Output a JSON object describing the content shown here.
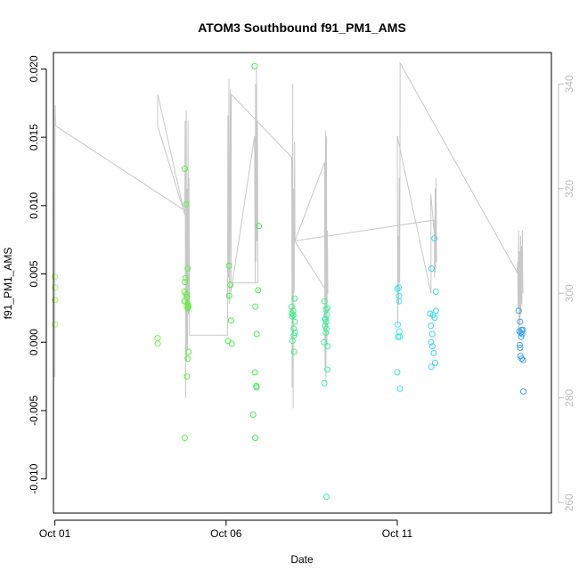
{
  "chart_data": {
    "type": "scatter",
    "title": "ATOM3 Southbound f91_PM1_AMS",
    "xlabel": "Date",
    "ylabel": "f91_PM1_AMS",
    "x_axis_type": "date",
    "xlim": [
      "2016-09-30T23:00",
      "2016-10-15T12:00"
    ],
    "ylim": [
      -0.0125,
      0.0212
    ],
    "y_ticks": [
      "-0.010",
      "-0.005",
      "0.000",
      "0.005",
      "0.010",
      "0.015",
      "0.020"
    ],
    "y_tick_values": [
      -0.01,
      -0.005,
      0.0,
      0.005,
      0.01,
      0.015,
      0.02
    ],
    "x_ticks": [
      "Oct 01",
      "Oct 06",
      "Oct 11"
    ],
    "x_tick_values": [
      "2016-10-01",
      "2016-10-06",
      "2016-10-11"
    ],
    "right_axis": {
      "ylim": [
        258,
        346
      ],
      "ticks": [
        "260",
        "280",
        "300",
        "320",
        "340"
      ],
      "tick_values": [
        260,
        280,
        300,
        320,
        340
      ],
      "color": "#bdbdbd"
    },
    "grid": false,
    "series": [
      {
        "kind": "points",
        "marker": "open-circle",
        "points": [
          {
            "x": "2016-10-01T00:00",
            "y": 0.0048,
            "c": "#b4f25a"
          },
          {
            "x": "2016-10-01T00:10",
            "y": 0.004,
            "c": "#b4f25a"
          },
          {
            "x": "2016-10-01T00:05",
            "y": 0.0031,
            "c": "#b4f25a"
          },
          {
            "x": "2016-10-01T00:12",
            "y": 0.0031,
            "c": "#b4f25a"
          },
          {
            "x": "2016-10-01T00:08",
            "y": 0.0013,
            "c": "#b4f25a"
          },
          {
            "x": "2016-10-04T00:00",
            "y": 0.0003,
            "c": "#7df23a"
          },
          {
            "x": "2016-10-04T00:05",
            "y": -0.0001,
            "c": "#7df23a"
          },
          {
            "x": "2016-10-04T19:00",
            "y": 0.0127,
            "c": "#5af23a"
          },
          {
            "x": "2016-10-04T20:00",
            "y": 0.0101,
            "c": "#5af23a"
          },
          {
            "x": "2016-10-04T21:00",
            "y": 0.0054,
            "c": "#5af23a"
          },
          {
            "x": "2016-10-04T19:30",
            "y": 0.0047,
            "c": "#5af23a"
          },
          {
            "x": "2016-10-04T19:10",
            "y": 0.0044,
            "c": "#5af23a"
          },
          {
            "x": "2016-10-04T18:45",
            "y": 0.0037,
            "c": "#5af23a"
          },
          {
            "x": "2016-10-04T20:10",
            "y": 0.0035,
            "c": "#5af23a"
          },
          {
            "x": "2016-10-04T20:30",
            "y": 0.0033,
            "c": "#5af23a"
          },
          {
            "x": "2016-10-04T18:50",
            "y": 0.003,
            "c": "#5af23a"
          },
          {
            "x": "2016-10-04T19:05",
            "y": 0.003,
            "c": "#5af23a"
          },
          {
            "x": "2016-10-04T21:05",
            "y": 0.0028,
            "c": "#5af23a"
          },
          {
            "x": "2016-10-04T21:10",
            "y": 0.0027,
            "c": "#5af23a"
          },
          {
            "x": "2016-10-04T21:20",
            "y": 0.0026,
            "c": "#5af23a"
          },
          {
            "x": "2016-10-04T21:30",
            "y": 0.0026,
            "c": "#5af23a"
          },
          {
            "x": "2016-10-04T21:00",
            "y": 0.0025,
            "c": "#5af23a"
          },
          {
            "x": "2016-10-04T21:40",
            "y": -0.0007,
            "c": "#5af23a"
          },
          {
            "x": "2016-10-04T21:00",
            "y": -0.0012,
            "c": "#5af23a"
          },
          {
            "x": "2016-10-04T20:40",
            "y": -0.0025,
            "c": "#5af23a"
          },
          {
            "x": "2016-10-04T19:00",
            "y": -0.007,
            "c": "#5af23a"
          },
          {
            "x": "2016-10-06T02:00",
            "y": 0.0056,
            "c": "#45ef45"
          },
          {
            "x": "2016-10-06T03:00",
            "y": 0.0042,
            "c": "#45ef45"
          },
          {
            "x": "2016-10-06T02:10",
            "y": 0.0034,
            "c": "#45ef45"
          },
          {
            "x": "2016-10-06T03:30",
            "y": 0.0016,
            "c": "#45ef45"
          },
          {
            "x": "2016-10-06T01:20",
            "y": 0.0001,
            "c": "#45ef45"
          },
          {
            "x": "2016-10-06T04:00",
            "y": -0.0001,
            "c": "#45ef45"
          },
          {
            "x": "2016-10-06T20:00",
            "y": 0.0202,
            "c": "#40ef55"
          },
          {
            "x": "2016-10-06T23:00",
            "y": 0.0085,
            "c": "#40ef55"
          },
          {
            "x": "2016-10-06T22:30",
            "y": 0.0038,
            "c": "#40ef55"
          },
          {
            "x": "2016-10-06T20:30",
            "y": 0.0026,
            "c": "#40ef55"
          },
          {
            "x": "2016-10-06T21:30",
            "y": 0.0006,
            "c": "#40ef55"
          },
          {
            "x": "2016-10-06T20:10",
            "y": -0.0022,
            "c": "#40ef55"
          },
          {
            "x": "2016-10-06T21:10",
            "y": -0.0032,
            "c": "#40ef55"
          },
          {
            "x": "2016-10-06T21:20",
            "y": -0.0033,
            "c": "#40ef55"
          },
          {
            "x": "2016-10-06T19:00",
            "y": -0.0053,
            "c": "#40ef55"
          },
          {
            "x": "2016-10-06T20:30",
            "y": -0.007,
            "c": "#40ef55"
          },
          {
            "x": "2016-10-08T00:00",
            "y": 0.0032,
            "c": "#3af089"
          },
          {
            "x": "2016-10-07T22:00",
            "y": 0.0026,
            "c": "#3af089"
          },
          {
            "x": "2016-10-07T23:00",
            "y": 0.0023,
            "c": "#3af089"
          },
          {
            "x": "2016-10-07T22:10",
            "y": 0.0021,
            "c": "#3af089"
          },
          {
            "x": "2016-10-07T23:10",
            "y": 0.002,
            "c": "#3af089"
          },
          {
            "x": "2016-10-07T22:20",
            "y": 0.0019,
            "c": "#3af089"
          },
          {
            "x": "2016-10-08T00:10",
            "y": 0.0015,
            "c": "#3af089"
          },
          {
            "x": "2016-10-07T23:20",
            "y": 0.001,
            "c": "#3af089"
          },
          {
            "x": "2016-10-08T00:20",
            "y": 0.0007,
            "c": "#3af089"
          },
          {
            "x": "2016-10-07T23:30",
            "y": 0.0005,
            "c": "#3af089"
          },
          {
            "x": "2016-10-07T22:30",
            "y": 0.0001,
            "c": "#3af089"
          },
          {
            "x": "2016-10-07T23:40",
            "y": -0.0007,
            "c": "#3af089"
          },
          {
            "x": "2016-10-08T21:00",
            "y": 0.003,
            "c": "#3aefa0"
          },
          {
            "x": "2016-10-08T23:00",
            "y": 0.0025,
            "c": "#3aefa0"
          },
          {
            "x": "2016-10-08T22:00",
            "y": 0.0024,
            "c": "#3aefa0"
          },
          {
            "x": "2016-10-08T22:30",
            "y": 0.002,
            "c": "#3aefa0"
          },
          {
            "x": "2016-10-08T21:20",
            "y": 0.0017,
            "c": "#3aefa0"
          },
          {
            "x": "2016-10-08T21:40",
            "y": 0.0017,
            "c": "#3aefa0"
          },
          {
            "x": "2016-10-08T22:10",
            "y": 0.0015,
            "c": "#3aefa0"
          },
          {
            "x": "2016-10-08T21:30",
            "y": 0.0012,
            "c": "#3aefa0"
          },
          {
            "x": "2016-10-08T22:20",
            "y": 0.001,
            "c": "#3aefa0"
          },
          {
            "x": "2016-10-08T21:50",
            "y": 0.0007,
            "c": "#3aefa0"
          },
          {
            "x": "2016-10-08T20:40",
            "y": 0.0,
            "c": "#3aefa0"
          },
          {
            "x": "2016-10-08T23:10",
            "y": -0.0003,
            "c": "#3aefa0"
          },
          {
            "x": "2016-10-08T23:00",
            "y": -0.002,
            "c": "#3aefa0"
          },
          {
            "x": "2016-10-08T20:50",
            "y": -0.003,
            "c": "#3aefa0"
          },
          {
            "x": "2016-10-08T22:20",
            "y": -0.0113,
            "c": "#3aefa0"
          },
          {
            "x": "2016-10-11T01:00",
            "y": 0.004,
            "c": "#3ae5e5"
          },
          {
            "x": "2016-10-11T00:00",
            "y": 0.0039,
            "c": "#3ae5e5"
          },
          {
            "x": "2016-10-11T01:10",
            "y": 0.0034,
            "c": "#3ae5e5"
          },
          {
            "x": "2016-10-11T01:20",
            "y": 0.003,
            "c": "#3ae5e5"
          },
          {
            "x": "2016-10-11T00:20",
            "y": 0.0013,
            "c": "#3ae5e5"
          },
          {
            "x": "2016-10-11T01:30",
            "y": 0.0008,
            "c": "#3ae5e5"
          },
          {
            "x": "2016-10-11T00:30",
            "y": 0.0004,
            "c": "#3ae5e5"
          },
          {
            "x": "2016-10-11T01:40",
            "y": 0.0004,
            "c": "#3ae5e5"
          },
          {
            "x": "2016-10-11T00:00",
            "y": -0.0022,
            "c": "#3ae5e5"
          },
          {
            "x": "2016-10-11T01:50",
            "y": -0.0034,
            "c": "#3ae5e5"
          },
          {
            "x": "2016-10-12T02:00",
            "y": 0.0076,
            "c": "#3ad5f0"
          },
          {
            "x": "2016-10-12T00:00",
            "y": 0.0054,
            "c": "#3ad5f0"
          },
          {
            "x": "2016-10-12T03:00",
            "y": 0.0037,
            "c": "#3ad5f0"
          },
          {
            "x": "2016-10-12T03:10",
            "y": 0.0023,
            "c": "#3ad5f0"
          },
          {
            "x": "2016-10-11T23:00",
            "y": 0.0021,
            "c": "#3ad5f0"
          },
          {
            "x": "2016-10-12T01:00",
            "y": 0.002,
            "c": "#3ad5f0"
          },
          {
            "x": "2016-10-12T02:10",
            "y": 0.0018,
            "c": "#3ad5f0"
          },
          {
            "x": "2016-10-11T23:30",
            "y": 0.0012,
            "c": "#3ad5f0"
          },
          {
            "x": "2016-10-12T00:30",
            "y": 0.0006,
            "c": "#3ad5f0"
          },
          {
            "x": "2016-10-11T23:40",
            "y": 0.0,
            "c": "#3ad5f0"
          },
          {
            "x": "2016-10-12T00:40",
            "y": -0.0003,
            "c": "#3ad5f0"
          },
          {
            "x": "2016-10-12T01:30",
            "y": -0.0008,
            "c": "#3ad5f0"
          },
          {
            "x": "2016-10-12T02:30",
            "y": -0.0015,
            "c": "#3ad5f0"
          },
          {
            "x": "2016-10-11T23:50",
            "y": -0.0018,
            "c": "#3ad5f0"
          },
          {
            "x": "2016-10-14T13:00",
            "y": 0.0023,
            "c": "#3aa3f0"
          },
          {
            "x": "2016-10-14T14:00",
            "y": 0.0015,
            "c": "#3aa3f0"
          },
          {
            "x": "2016-10-14T15:00",
            "y": 0.0009,
            "c": "#3aa3f0"
          },
          {
            "x": "2016-10-14T16:00",
            "y": 0.0009,
            "c": "#3aa3f0"
          },
          {
            "x": "2016-10-14T13:30",
            "y": 0.0008,
            "c": "#3aa3f0"
          },
          {
            "x": "2016-10-14T14:30",
            "y": 0.0007,
            "c": "#3aa3f0"
          },
          {
            "x": "2016-10-14T15:30",
            "y": 0.0006,
            "c": "#3aa3f0"
          },
          {
            "x": "2016-10-14T14:50",
            "y": 0.0004,
            "c": "#3aa3f0"
          },
          {
            "x": "2016-10-14T13:50",
            "y": -0.0002,
            "c": "#3aa3f0"
          },
          {
            "x": "2016-10-14T14:10",
            "y": -0.0004,
            "c": "#3aa3f0"
          },
          {
            "x": "2016-10-14T14:20",
            "y": -0.001,
            "c": "#3aa3f0"
          },
          {
            "x": "2016-10-14T15:10",
            "y": -0.0012,
            "c": "#3aa3f0"
          },
          {
            "x": "2016-10-14T16:10",
            "y": -0.0013,
            "c": "#3aa3f0"
          },
          {
            "x": "2016-10-14T16:20",
            "y": -0.0036,
            "c": "#3aa3f0"
          }
        ]
      },
      {
        "kind": "line",
        "axis": "right",
        "color": "#c8c8c8",
        "points": [
          [
            "2016-10-01T00:00",
            284
          ],
          [
            "2016-10-01T00:10",
            333
          ],
          [
            "2016-10-01T00:20",
            336
          ],
          [
            "2016-10-01T00:30",
            332
          ],
          [
            "2016-10-04T18:00",
            316
          ],
          [
            "2016-10-04T00:00",
            332
          ],
          [
            "2016-10-04T00:05",
            338
          ],
          [
            "2016-10-04T19:00",
            315
          ],
          [
            "2016-10-04T19:20",
            333
          ],
          [
            "2016-10-04T19:40",
            280
          ],
          [
            "2016-10-04T20:00",
            335
          ],
          [
            "2016-10-04T20:20",
            287
          ],
          [
            "2016-10-04T20:40",
            320
          ],
          [
            "2016-10-04T21:00",
            289
          ],
          [
            "2016-10-04T21:20",
            333
          ],
          [
            "2016-10-04T21:40",
            296
          ],
          [
            "2016-10-04T22:00",
            322
          ],
          [
            "2016-10-04T22:20",
            292
          ],
          [
            "2016-10-06T01:00",
            292
          ],
          [
            "2016-10-06T01:20",
            334
          ],
          [
            "2016-10-06T01:40",
            303
          ],
          [
            "2016-10-06T02:00",
            341
          ],
          [
            "2016-10-06T02:20",
            298
          ],
          [
            "2016-10-06T02:40",
            320
          ],
          [
            "2016-10-06T03:00",
            339
          ],
          [
            "2016-10-06T03:20",
            300
          ],
          [
            "2016-10-06T20:00",
            330
          ],
          [
            "2016-10-06T20:20",
            302
          ],
          [
            "2016-10-06T20:40",
            340
          ],
          [
            "2016-10-06T21:00",
            306
          ],
          [
            "2016-10-06T21:20",
            343
          ],
          [
            "2016-10-06T21:40",
            310
          ],
          [
            "2016-10-06T22:00",
            333
          ],
          [
            "2016-10-06T22:20",
            302
          ],
          [
            "2016-10-06T22:40",
            302
          ],
          [
            "2016-10-06T03:30",
            302
          ],
          [
            "2016-10-06T03:40",
            338
          ],
          [
            "2016-10-07T22:00",
            326
          ],
          [
            "2016-10-07T22:20",
            282
          ],
          [
            "2016-10-07T22:40",
            340
          ],
          [
            "2016-10-07T23:00",
            278
          ],
          [
            "2016-10-07T23:20",
            320
          ],
          [
            "2016-10-07T23:40",
            300
          ],
          [
            "2016-10-08T00:00",
            329
          ],
          [
            "2016-10-08T00:20",
            310
          ],
          [
            "2016-10-08T21:00",
            325
          ],
          [
            "2016-10-08T21:20",
            286
          ],
          [
            "2016-10-08T21:40",
            331
          ],
          [
            "2016-10-08T22:00",
            283
          ],
          [
            "2016-10-08T22:20",
            330
          ],
          [
            "2016-10-08T22:40",
            290
          ],
          [
            "2016-10-08T23:00",
            312
          ],
          [
            "2016-10-08T23:20",
            300
          ],
          [
            "2016-10-08T00:00",
            310
          ],
          [
            "2016-10-12T02:00",
            314
          ],
          [
            "2016-10-12T02:10",
            303
          ],
          [
            "2016-10-12T02:30",
            320
          ],
          [
            "2016-10-12T02:50",
            304
          ],
          [
            "2016-10-12T03:10",
            322
          ],
          [
            "2016-10-12T03:30",
            306
          ],
          [
            "2016-10-11T23:30",
            319
          ],
          [
            "2016-10-11T23:40",
            300
          ],
          [
            "2016-10-11T00:00",
            330
          ],
          [
            "2016-10-11T00:20",
            294
          ],
          [
            "2016-10-11T00:40",
            311
          ],
          [
            "2016-10-11T01:00",
            298
          ],
          [
            "2016-10-11T01:20",
            322
          ],
          [
            "2016-10-11T01:40",
            302
          ],
          [
            "2016-10-11T02:00",
            344
          ],
          [
            "2016-10-14T12:00",
            304
          ],
          [
            "2016-10-14T12:20",
            306
          ],
          [
            "2016-10-14T12:40",
            297
          ],
          [
            "2016-10-14T13:00",
            312
          ],
          [
            "2016-10-14T13:20",
            292
          ],
          [
            "2016-10-14T13:40",
            308
          ],
          [
            "2016-10-14T14:00",
            294
          ],
          [
            "2016-10-14T14:20",
            311
          ],
          [
            "2016-10-14T14:40",
            296
          ],
          [
            "2016-10-14T15:00",
            309
          ],
          [
            "2016-10-14T15:20",
            298
          ],
          [
            "2016-10-14T15:40",
            312
          ],
          [
            "2016-10-14T16:00",
            300
          ]
        ]
      }
    ]
  }
}
